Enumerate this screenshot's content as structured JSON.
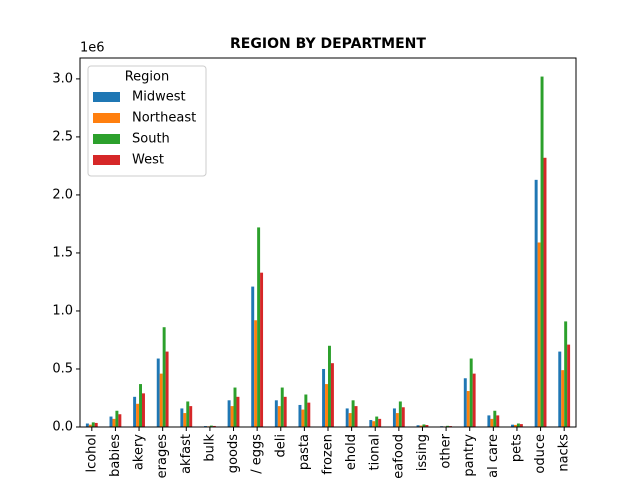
{
  "chart_data": {
    "type": "bar",
    "title": "REGION BY DEPARTMENT",
    "y_offset_label": "1e6",
    "categories": [
      "lcohol",
      "babies",
      "akery",
      "erages",
      "akfast",
      "bulk",
      "goods",
      "/ eggs",
      "deli",
      "pasta",
      "frozen",
      "ehold",
      "tional",
      "eafood",
      "issing",
      "other",
      "pantry",
      "al care",
      "pets",
      "oduce",
      "nacks"
    ],
    "series": [
      {
        "name": "Midwest",
        "color": "#1f77b4",
        "values": [
          0.03,
          0.09,
          0.26,
          0.59,
          0.16,
          0.008,
          0.23,
          1.21,
          0.23,
          0.19,
          0.5,
          0.16,
          0.06,
          0.16,
          0.015,
          0.007,
          0.42,
          0.1,
          0.02,
          2.13,
          0.65
        ]
      },
      {
        "name": "Northeast",
        "color": "#ff7f0e",
        "values": [
          0.02,
          0.07,
          0.2,
          0.46,
          0.12,
          0.006,
          0.18,
          0.92,
          0.18,
          0.15,
          0.37,
          0.12,
          0.05,
          0.12,
          0.012,
          0.005,
          0.31,
          0.07,
          0.018,
          1.59,
          0.49
        ]
      },
      {
        "name": "South",
        "color": "#2ca02c",
        "values": [
          0.04,
          0.14,
          0.37,
          0.86,
          0.22,
          0.012,
          0.34,
          1.72,
          0.34,
          0.28,
          0.7,
          0.23,
          0.09,
          0.22,
          0.022,
          0.01,
          0.59,
          0.14,
          0.03,
          3.02,
          0.91
        ]
      },
      {
        "name": "West",
        "color": "#d62728",
        "values": [
          0.035,
          0.11,
          0.29,
          0.65,
          0.18,
          0.009,
          0.26,
          1.33,
          0.26,
          0.21,
          0.55,
          0.18,
          0.07,
          0.17,
          0.017,
          0.008,
          0.46,
          0.1,
          0.025,
          2.32,
          0.71
        ]
      }
    ],
    "ylim": [
      0,
      3.18
    ],
    "yticks": [
      {
        "value": 0,
        "label": "0.0"
      },
      0.5,
      {
        "value": 1,
        "label": "1.0"
      },
      1.5,
      {
        "value": 2,
        "label": "2.0"
      },
      2.5,
      {
        "value": 3,
        "label": "3.0"
      }
    ],
    "legend_title": "Region",
    "legend": "upper left",
    "grid": false
  }
}
